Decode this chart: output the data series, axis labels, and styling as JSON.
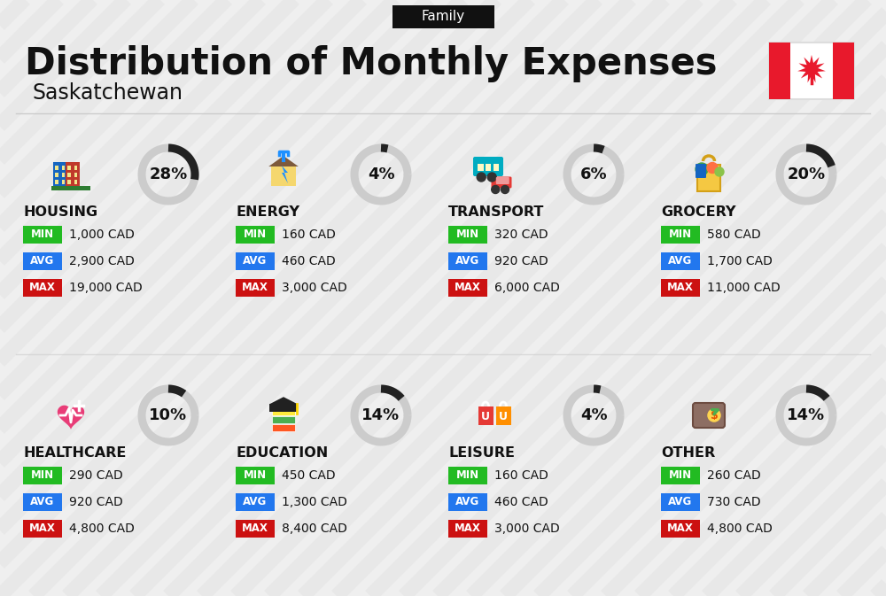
{
  "title": "Distribution of Monthly Expenses",
  "subtitle": "Saskatchewan",
  "tag": "Family",
  "bg_color": "#efefef",
  "categories": [
    {
      "name": "HOUSING",
      "pct": 28,
      "min": "1,000 CAD",
      "avg": "2,900 CAD",
      "max": "19,000 CAD",
      "col": 0,
      "row": 0
    },
    {
      "name": "ENERGY",
      "pct": 4,
      "min": "160 CAD",
      "avg": "460 CAD",
      "max": "3,000 CAD",
      "col": 1,
      "row": 0
    },
    {
      "name": "TRANSPORT",
      "pct": 6,
      "min": "320 CAD",
      "avg": "920 CAD",
      "max": "6,000 CAD",
      "col": 2,
      "row": 0
    },
    {
      "name": "GROCERY",
      "pct": 20,
      "min": "580 CAD",
      "avg": "1,700 CAD",
      "max": "11,000 CAD",
      "col": 3,
      "row": 0
    },
    {
      "name": "HEALTHCARE",
      "pct": 10,
      "min": "290 CAD",
      "avg": "920 CAD",
      "max": "4,800 CAD",
      "col": 0,
      "row": 1
    },
    {
      "name": "EDUCATION",
      "pct": 14,
      "min": "450 CAD",
      "avg": "1,300 CAD",
      "max": "8,400 CAD",
      "col": 1,
      "row": 1
    },
    {
      "name": "LEISURE",
      "pct": 4,
      "min": "160 CAD",
      "avg": "460 CAD",
      "max": "3,000 CAD",
      "col": 2,
      "row": 1
    },
    {
      "name": "OTHER",
      "pct": 14,
      "min": "260 CAD",
      "avg": "730 CAD",
      "max": "4,800 CAD",
      "col": 3,
      "row": 1
    }
  ],
  "min_color": "#22bb22",
  "avg_color": "#2277ee",
  "max_color": "#cc1111",
  "stripe_color": "#e0e0e0",
  "tag_bg": "#111111",
  "tag_fg": "#ffffff",
  "title_color": "#111111",
  "subtitle_color": "#111111",
  "circle_bg": "#cccccc",
  "circle_fg": "#222222",
  "pct_color": "#111111",
  "cat_name_color": "#111111",
  "val_color": "#111111",
  "canada_red": "#e8192c",
  "separator_color": "#cccccc",
  "flag_border": "#dddddd"
}
